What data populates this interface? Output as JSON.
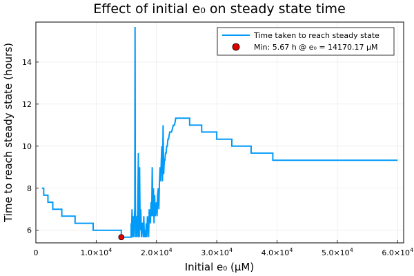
{
  "chart_data": {
    "type": "line",
    "title": "Effect of initial e₀ on steady state time",
    "xlabel": "Initial e₀ (μM)",
    "ylabel": "Time to reach steady state (hours)",
    "xlim": [
      0,
      61000
    ],
    "ylim": [
      5.4,
      15.9
    ],
    "grid": true,
    "legend_position": "top-right",
    "x_ticks": [
      {
        "value": 0,
        "mantissa": "0",
        "exponent": ""
      },
      {
        "value": 10000,
        "mantissa": "1.0×10",
        "exponent": "4"
      },
      {
        "value": 20000,
        "mantissa": "2.0×10",
        "exponent": "4"
      },
      {
        "value": 30000,
        "mantissa": "3.0×10",
        "exponent": "4"
      },
      {
        "value": 40000,
        "mantissa": "4.0×10",
        "exponent": "4"
      },
      {
        "value": 50000,
        "mantissa": "5.0×10",
        "exponent": "4"
      },
      {
        "value": 60000,
        "mantissa": "6.0×10",
        "exponent": "4"
      }
    ],
    "y_ticks": [
      6,
      8,
      10,
      12,
      14
    ],
    "series": [
      {
        "name": "Time taken to reach steady state",
        "color": "#009af9",
        "x": [
          1000,
          1300,
          1300,
          2000,
          2000,
          2800,
          2800,
          4300,
          4300,
          6500,
          6500,
          9500,
          9500,
          14170,
          14170,
          15800,
          15800,
          15850,
          15950,
          16050,
          16150,
          16250,
          16350,
          16400,
          16450,
          16500,
          16550,
          16600,
          16650,
          16700,
          16800,
          16900,
          17000,
          17050,
          17100,
          17150,
          17200,
          17300,
          17400,
          17500,
          17600,
          17700,
          17800,
          17900,
          18000,
          18100,
          18200,
          18300,
          18400,
          18500,
          18600,
          18700,
          18800,
          18900,
          19000,
          19100,
          19200,
          19300,
          19400,
          19500,
          19600,
          19700,
          19800,
          19900,
          20000,
          20100,
          20200,
          20300,
          20400,
          20500,
          20600,
          20700,
          20800,
          20900,
          21000,
          21100,
          21200,
          21300,
          21400,
          21500,
          21600,
          21700,
          21800,
          21900,
          22000,
          22200,
          22500,
          22800,
          23000,
          23200,
          23500,
          23800,
          24000,
          24500,
          25000,
          25500,
          25500,
          27500,
          27500,
          30000,
          30000,
          32500,
          32500,
          35700,
          35700,
          39300,
          39300,
          60000
        ],
        "y": [
          8.0,
          8.0,
          7.67,
          7.67,
          7.33,
          7.33,
          7.0,
          7.0,
          6.67,
          6.67,
          6.33,
          6.33,
          6.0,
          6.0,
          5.67,
          5.67,
          6.33,
          5.67,
          7.0,
          5.67,
          6.67,
          5.67,
          6.67,
          7.0,
          15.67,
          7.0,
          5.67,
          6.33,
          6.67,
          6.33,
          5.67,
          7.0,
          9.67,
          5.67,
          6.67,
          5.67,
          9.0,
          6.0,
          7.0,
          5.67,
          6.33,
          6.33,
          5.67,
          6.67,
          5.67,
          6.0,
          5.67,
          6.33,
          5.67,
          6.67,
          6.33,
          5.67,
          7.0,
          6.67,
          6.33,
          7.33,
          6.67,
          9.0,
          6.67,
          8.0,
          6.33,
          7.67,
          6.67,
          7.0,
          7.33,
          6.67,
          7.67,
          8.0,
          7.0,
          8.33,
          9.0,
          8.33,
          9.33,
          10.0,
          8.33,
          11.0,
          8.67,
          9.33,
          9.33,
          9.67,
          9.67,
          10.0,
          10.0,
          10.33,
          10.33,
          10.67,
          10.67,
          11.0,
          11.0,
          11.33,
          11.33,
          11.33,
          11.33,
          11.33,
          11.33,
          11.33,
          11.0,
          11.0,
          10.67,
          10.67,
          10.33,
          10.33,
          10.0,
          10.0,
          9.67,
          9.67,
          9.33,
          9.33
        ]
      },
      {
        "name": "Min: 5.67 h @ e₀ = 14170.17 μM",
        "color": "#e00000",
        "marker": "circle",
        "x": [
          14170.17
        ],
        "y": [
          5.67
        ]
      }
    ]
  }
}
